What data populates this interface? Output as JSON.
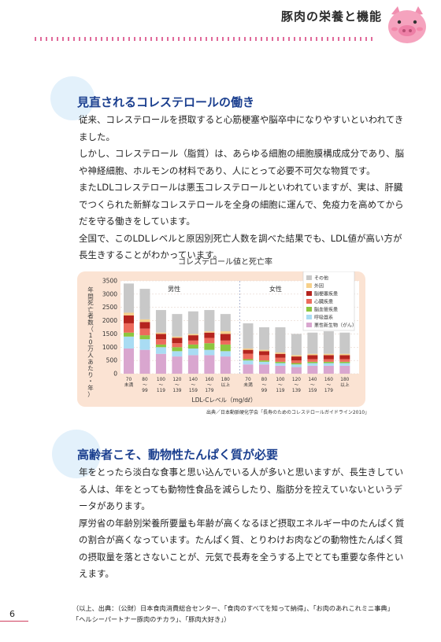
{
  "header": {
    "title": "豚肉の栄養と機能"
  },
  "section1": {
    "title": "見直されるコレステロールの働き",
    "paragraphs": [
      "従来、コレステロールを摂取すると心筋梗塞や脳卒中になりやすいといわれてきました。",
      "しかし、コレステロール（脂質）は、あらゆる細胞の細胞膜構成成分であり、脳や神経細胞、ホルモンの材料であり、人にとって必要不可欠な物質です。",
      "またLDLコレステロールは悪玉コレステロールといわれていますが、実は、肝臓でつくられた新鮮なコレステロールを全身の細胞に運んで、免疫力を高めてからだを守る働きをしています。",
      "全国で、このLDLレベルと原因別死亡人数を調べた結果でも、LDL値が高い方が長生きすることがわかっています。"
    ]
  },
  "chart_data": {
    "type": "bar",
    "title": "コレステロール値と死亡率",
    "ylabel": "年間死亡者数（10万人あたり・年）",
    "xlabel": "LDL-Cレベル（mg/dℓ）",
    "ylim": [
      0,
      3500
    ],
    "yticks": [
      0,
      500,
      1000,
      1500,
      2000,
      2500,
      3000,
      3500
    ],
    "groups": [
      "男性",
      "女性"
    ],
    "categories": [
      "70未満",
      "80〜99",
      "100〜119",
      "120〜139",
      "140〜159",
      "160〜179",
      "180以上"
    ],
    "stack_order": [
      "悪性新生物（がん）",
      "呼吸器系",
      "脳血管疾患",
      "心臓疾患",
      "脳梗塞疾患",
      "外因",
      "その他"
    ],
    "legend": [
      "その他",
      "外因",
      "脳梗塞疾患",
      "心臓疾患",
      "脳血管疾患",
      "呼吸器系",
      "悪性新生物（がん）"
    ],
    "colors": {
      "悪性新生物（がん）": "#d9a6cf",
      "呼吸器系": "#a9dcf3",
      "脳血管疾患": "#8cc63f",
      "心臓疾患": "#ec6a5c",
      "脳梗塞疾患": "#b5241e",
      "外因": "#f6d08a",
      "その他": "#c8c8c8"
    },
    "series_male": [
      {
        "name": "悪性新生物（がん）",
        "values": [
          950,
          900,
          750,
          650,
          700,
          700,
          650
        ]
      },
      {
        "name": "呼吸器系",
        "values": [
          450,
          400,
          250,
          200,
          250,
          200,
          200
        ]
      },
      {
        "name": "脳血管疾患",
        "values": [
          150,
          150,
          100,
          150,
          150,
          250,
          250
        ]
      },
      {
        "name": "心臓疾患",
        "values": [
          350,
          250,
          200,
          150,
          150,
          200,
          150
        ]
      },
      {
        "name": "脳梗塞疾患",
        "values": [
          300,
          250,
          200,
          200,
          200,
          200,
          250
        ]
      },
      {
        "name": "外因",
        "values": [
          100,
          100,
          50,
          50,
          50,
          50,
          100
        ]
      },
      {
        "name": "その他",
        "values": [
          1100,
          1150,
          850,
          850,
          850,
          800,
          650
        ]
      }
    ],
    "series_female": [
      {
        "name": "悪性新生物（がん）",
        "values": [
          350,
          350,
          300,
          250,
          300,
          300,
          300
        ]
      },
      {
        "name": "呼吸器系",
        "values": [
          150,
          100,
          100,
          100,
          100,
          100,
          100
        ]
      },
      {
        "name": "脳血管疾患",
        "values": [
          50,
          50,
          50,
          50,
          50,
          50,
          50
        ]
      },
      {
        "name": "心臓疾患",
        "values": [
          200,
          200,
          150,
          100,
          100,
          100,
          100
        ]
      },
      {
        "name": "脳梗塞疾患",
        "values": [
          150,
          150,
          150,
          150,
          150,
          150,
          150
        ]
      },
      {
        "name": "外因",
        "values": [
          50,
          50,
          50,
          50,
          50,
          50,
          50
        ]
      },
      {
        "name": "その他",
        "values": [
          950,
          850,
          950,
          800,
          800,
          850,
          800
        ]
      }
    ]
  },
  "chart_source": "出典／日本動脈硬化学会「長寿のためのコレステロールガイドライン2010」",
  "section2": {
    "title": "高齢者こそ、動物性たんぱく質が必要",
    "paragraphs": [
      "年をとったら淡白な食事と思い込んでいる人が多いと思いますが、長生きしている人は、年をとっても動物性食品を減らしたり、脂肪分を控えていないというデータがあります。",
      "厚労省の年齢別栄養所要量も年齢が高くなるほど摂取エネルギー中のたんぱく質の割合が高くなっています。たんぱく質、とりわけお肉などの動物性たんぱく質の摂取量を落とさないことが、元気で長寿を全うする上でとても重要な条件といえます。"
    ]
  },
  "footer": {
    "note_line1": "（以上、出典：（公財）日本食肉消費総合センター、「食肉のすべてを知って納得」、「お肉のあれこれミニ事典」",
    "note_line2": "「ヘルシーパートナー豚肉のチカラ」、「豚肉大好き」）",
    "page_number": "6"
  }
}
